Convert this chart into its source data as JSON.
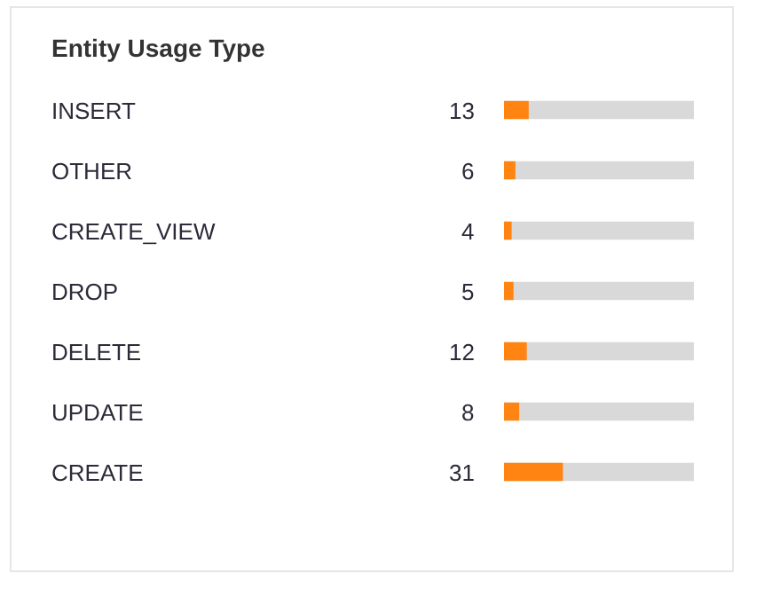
{
  "chart_data": {
    "type": "bar",
    "orientation": "horizontal",
    "title": "Entity Usage Type",
    "categories": [
      "INSERT",
      "OTHER",
      "CREATE_VIEW",
      "DROP",
      "DELETE",
      "UPDATE",
      "CREATE"
    ],
    "values": [
      13,
      6,
      4,
      5,
      12,
      8,
      31
    ],
    "color": "#ff8412",
    "xlim": [
      0,
      100
    ],
    "data_labels": true,
    "tick_labels": false,
    "grid": false,
    "legend": false
  }
}
